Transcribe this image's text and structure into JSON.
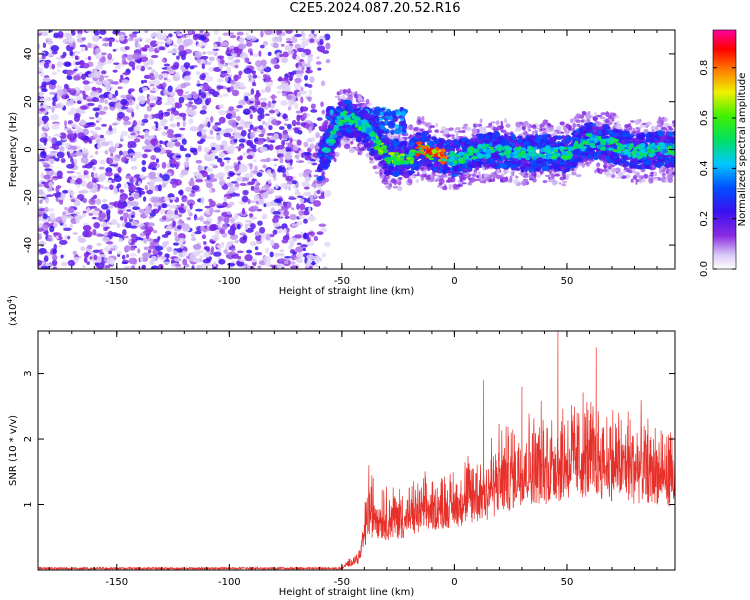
{
  "title": "C2E5.2024.087.20.52.R16",
  "chart_data": [
    {
      "type": "heatmap",
      "xlabel": "Height of straight line (km)",
      "ylabel": "Frequency (Hz)",
      "xlim": [
        -185,
        98
      ],
      "ylim": [
        -50,
        50
      ],
      "xticks": [
        -150,
        -100,
        -50,
        0,
        50
      ],
      "yticks": [
        -40,
        -20,
        0,
        20,
        40
      ],
      "colorbar": {
        "label": "Normalized spectral amplitude",
        "range": [
          0,
          0.95
        ],
        "ticks": [
          0.0,
          0.2,
          0.4,
          0.6,
          0.8
        ],
        "tick_labels": [
          "0.0",
          "0.2",
          "0.4",
          "0.6",
          "0.8"
        ]
      },
      "features": {
        "noise_region_x": [
          -185,
          -60
        ],
        "signal_track": [
          {
            "x": -58,
            "y": -2
          },
          {
            "x": -50,
            "y": 14
          },
          {
            "x": -40,
            "y": 10
          },
          {
            "x": -30,
            "y": -3
          },
          {
            "x": -20,
            "y": -4
          },
          {
            "x": -15,
            "y": 1
          },
          {
            "x": -10,
            "y": -2
          },
          {
            "x": -5,
            "y": -3
          },
          {
            "x": 0,
            "y": -4
          },
          {
            "x": 10,
            "y": -1
          },
          {
            "x": 20,
            "y": 0
          },
          {
            "x": 30,
            "y": -2
          },
          {
            "x": 40,
            "y": -1
          },
          {
            "x": 50,
            "y": -2
          },
          {
            "x": 60,
            "y": 4
          },
          {
            "x": 70,
            "y": 2
          },
          {
            "x": 80,
            "y": -1
          },
          {
            "x": 90,
            "y": 0
          }
        ]
      }
    },
    {
      "type": "line",
      "xlabel": "Height of straight line (km)",
      "ylabel": "SNR (10 * v/v)",
      "y_multiplier_label": "(x10",
      "y_multiplier_exp": "4",
      "xlim": [
        -185,
        98
      ],
      "ylim": [
        0,
        3.65
      ],
      "xticks": [
        -150,
        -100,
        -50,
        0,
        50
      ],
      "yticks": [
        1,
        2,
        3
      ],
      "series": [
        {
          "color": "#e8302a",
          "envelope": [
            {
              "x": -185,
              "base": 0.01,
              "amp": 0.01
            },
            {
              "x": -50,
              "base": 0.02,
              "amp": 0.03
            },
            {
              "x": -42,
              "base": 0.1,
              "amp": 0.3
            },
            {
              "x": -38,
              "base": 0.5,
              "amp": 1.2
            },
            {
              "x": -30,
              "base": 0.45,
              "amp": 1.0
            },
            {
              "x": -20,
              "base": 0.5,
              "amp": 0.9
            },
            {
              "x": -10,
              "base": 0.6,
              "amp": 1.0
            },
            {
              "x": 0,
              "base": 0.65,
              "amp": 1.0
            },
            {
              "x": 10,
              "base": 0.7,
              "amp": 1.4
            },
            {
              "x": 20,
              "base": 0.8,
              "amp": 1.6
            },
            {
              "x": 30,
              "base": 1.0,
              "amp": 1.6
            },
            {
              "x": 40,
              "base": 1.0,
              "amp": 1.7
            },
            {
              "x": 50,
              "base": 1.05,
              "amp": 1.8
            },
            {
              "x": 60,
              "base": 1.1,
              "amp": 1.8
            },
            {
              "x": 70,
              "base": 1.05,
              "amp": 1.7
            },
            {
              "x": 80,
              "base": 1.0,
              "amp": 1.7
            },
            {
              "x": 90,
              "base": 1.0,
              "amp": 1.4
            },
            {
              "x": 98,
              "base": 0.95,
              "amp": 1.3
            }
          ],
          "peaks": [
            {
              "x": 46,
              "y": 3.65
            },
            {
              "x": 63,
              "y": 3.4
            },
            {
              "x": 13,
              "y": 2.9
            },
            {
              "x": 30,
              "y": 2.8
            },
            {
              "x": -38,
              "y": 1.6
            }
          ]
        }
      ]
    }
  ]
}
